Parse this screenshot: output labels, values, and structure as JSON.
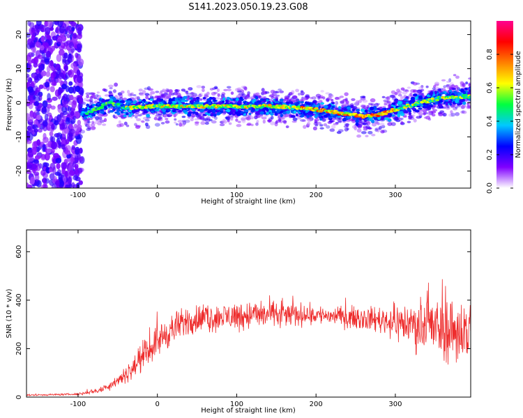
{
  "figure_title": "S141.2023.050.19.23.G08",
  "chart_data": [
    {
      "type": "heatmap",
      "xlabel": "Height of straight line (km)",
      "ylabel": "Frequency (Hz)",
      "xlim": [
        -165,
        395
      ],
      "ylim": [
        -25,
        24
      ],
      "xticks": [
        -100,
        0,
        100,
        200,
        300
      ],
      "yticks": [
        -20,
        -10,
        0,
        10,
        20
      ],
      "colorbar": {
        "label": "Normalized spectral amplitude",
        "range": [
          0.0,
          1.0
        ],
        "ticks": [
          0.0,
          0.2,
          0.4,
          0.6,
          0.8
        ],
        "colors": [
          "#ffffff",
          "#8000ff",
          "#0000ff",
          "#00c8ff",
          "#00ff40",
          "#ffff00",
          "#ff8000",
          "#ff0000",
          "#ff0090"
        ]
      },
      "ridge_frequency_hz": {
        "x": [
          -100,
          -80,
          -60,
          -40,
          0,
          50,
          100,
          150,
          200,
          230,
          260,
          280,
          300,
          330,
          360,
          395
        ],
        "y": [
          -4,
          -2,
          0,
          -1.5,
          -1,
          -1,
          -1,
          -1,
          -2,
          -3,
          -4,
          -3.5,
          -2,
          0,
          1.5,
          2
        ]
      }
    },
    {
      "type": "line",
      "xlabel": "Height of straight line (km)",
      "ylabel": "SNR (10 * v/v)",
      "xlim": [
        -165,
        395
      ],
      "ylim": [
        0,
        690
      ],
      "xticks": [
        -100,
        0,
        100,
        200,
        300
      ],
      "yticks": [
        0,
        200,
        400,
        600
      ],
      "color": "#ee2c2c",
      "envelope": {
        "x": [
          -165,
          -100,
          -70,
          -50,
          -30,
          -10,
          10,
          40,
          80,
          120,
          160,
          200,
          240,
          280,
          320,
          360,
          395
        ],
        "mean": [
          8,
          12,
          30,
          70,
          120,
          200,
          260,
          320,
          330,
          340,
          340,
          340,
          330,
          320,
          300,
          280,
          270
        ],
        "spread": [
          5,
          6,
          20,
          40,
          60,
          90,
          100,
          90,
          90,
          90,
          80,
          60,
          60,
          80,
          140,
          200,
          220
        ]
      }
    }
  ]
}
